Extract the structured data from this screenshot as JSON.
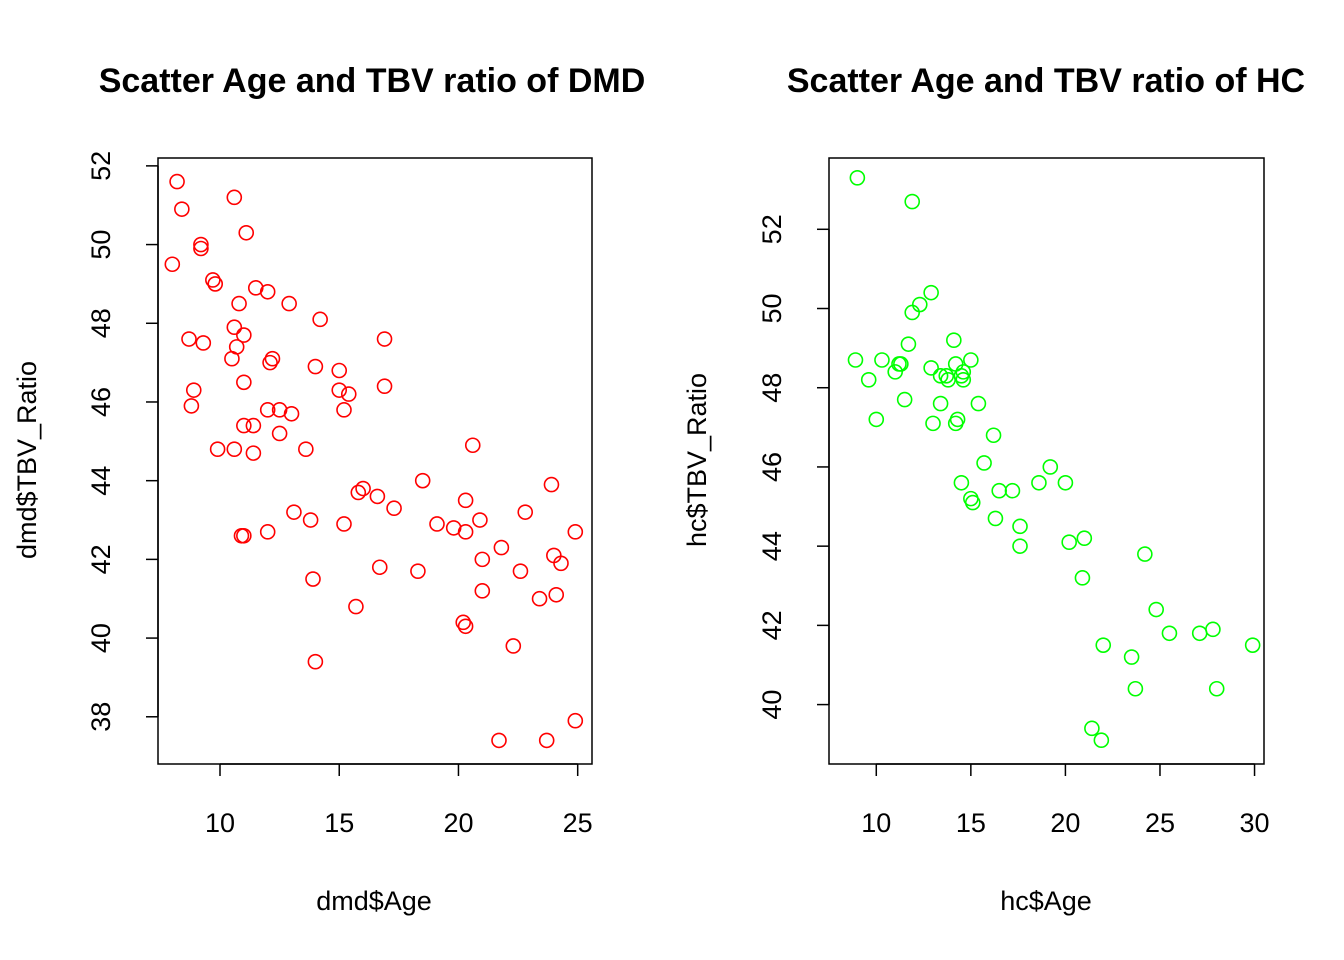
{
  "chart_data": [
    {
      "type": "scatter",
      "title": "Scatter Age and TBV ratio of DMD",
      "xlabel": "dmd$Age",
      "ylabel": "dmd$TBV_Ratio",
      "xlim": [
        7.4,
        25.6
      ],
      "ylim": [
        36.8,
        52.2
      ],
      "xticks": [
        10,
        15,
        20,
        25
      ],
      "yticks": [
        38,
        40,
        42,
        44,
        46,
        48,
        50,
        52
      ],
      "color": "#ff0000",
      "grid": false,
      "legend": "none",
      "x": [
        8.2,
        8.4,
        8.0,
        9.2,
        9.2,
        9.7,
        9.8,
        8.7,
        9.3,
        8.9,
        8.8,
        9.9,
        10.6,
        11.1,
        10.8,
        11.0,
        10.6,
        10.7,
        10.5,
        11.0,
        11.0,
        11.4,
        11.5,
        12.0,
        12.1,
        12.2,
        12.0,
        12.5,
        12.5,
        12.9,
        13.0,
        14.2,
        14.0,
        13.6,
        10.6,
        11.0,
        11.4,
        15.0,
        15.0,
        15.2,
        15.4,
        16.9,
        16.9,
        15.8,
        16.0,
        16.6,
        17.3,
        13.1,
        13.8,
        15.2,
        12.0,
        10.9,
        13.9,
        14.0,
        16.7,
        15.7,
        18.5,
        18.3,
        19.1,
        19.8,
        20.3,
        20.3,
        20.6,
        20.9,
        21.0,
        21.0,
        21.8,
        22.6,
        22.8,
        22.3,
        20.2,
        20.3,
        21.7,
        23.4,
        23.9,
        24.0,
        24.1,
        24.3,
        24.9,
        23.7,
        24.9
      ],
      "y": [
        51.6,
        50.9,
        49.5,
        50.0,
        49.9,
        49.1,
        49.0,
        47.6,
        47.5,
        46.3,
        45.9,
        44.8,
        51.2,
        50.3,
        48.5,
        47.7,
        47.9,
        47.4,
        47.1,
        46.5,
        45.4,
        45.4,
        48.9,
        48.8,
        47.0,
        47.1,
        45.8,
        45.8,
        45.2,
        48.5,
        45.7,
        48.1,
        46.9,
        44.8,
        44.8,
        42.6,
        44.7,
        46.8,
        46.3,
        45.8,
        46.2,
        47.6,
        46.4,
        43.7,
        43.8,
        43.6,
        43.3,
        43.2,
        43.0,
        42.9,
        42.7,
        42.6,
        41.5,
        39.4,
        41.8,
        40.8,
        44.0,
        41.7,
        42.9,
        42.8,
        43.5,
        42.7,
        44.9,
        43.0,
        42.0,
        41.2,
        42.3,
        41.7,
        43.2,
        39.8,
        40.4,
        40.3,
        37.4,
        41.0,
        43.9,
        42.1,
        41.1,
        41.9,
        42.7,
        37.4,
        37.9
      ]
    },
    {
      "type": "scatter",
      "title": "Scatter Age and TBV ratio of HC",
      "xlabel": "hc$Age",
      "ylabel": "hc$TBV_Ratio",
      "xlim": [
        7.5,
        30.5
      ],
      "ylim": [
        38.5,
        53.8
      ],
      "xticks": [
        10,
        15,
        20,
        25,
        30
      ],
      "yticks": [
        40,
        42,
        44,
        46,
        48,
        50,
        52
      ],
      "color": "#00ff00",
      "grid": false,
      "legend": "none",
      "x": [
        9.0,
        11.9,
        8.9,
        10.3,
        11.0,
        11.2,
        11.3,
        9.6,
        10.0,
        11.5,
        11.7,
        11.9,
        12.3,
        12.9,
        12.9,
        13.0,
        13.4,
        13.4,
        13.7,
        13.8,
        14.1,
        14.2,
        14.2,
        14.3,
        14.5,
        14.6,
        14.6,
        15.0,
        15.4,
        15.0,
        15.1,
        14.5,
        15.7,
        16.2,
        16.3,
        16.5,
        17.2,
        17.6,
        17.6,
        18.6,
        19.2,
        20.0,
        20.2,
        21.0,
        20.9,
        24.2,
        21.4,
        22.0,
        21.9,
        23.5,
        23.7,
        24.8,
        25.5,
        27.1,
        27.8,
        28.0,
        29.9
      ],
      "y": [
        53.3,
        52.7,
        48.7,
        48.7,
        48.4,
        48.6,
        48.6,
        48.2,
        47.2,
        47.7,
        49.1,
        49.9,
        50.1,
        50.4,
        48.5,
        47.1,
        48.3,
        47.6,
        48.3,
        48.2,
        49.2,
        48.6,
        47.1,
        47.2,
        48.3,
        48.4,
        48.2,
        48.7,
        47.6,
        45.2,
        45.1,
        45.6,
        46.1,
        46.8,
        44.7,
        45.4,
        45.4,
        44.5,
        44.0,
        45.6,
        46.0,
        45.6,
        44.1,
        44.2,
        43.2,
        43.8,
        39.4,
        41.5,
        39.1,
        41.2,
        40.4,
        42.4,
        41.8,
        41.8,
        41.9,
        40.4,
        41.5
      ]
    }
  ]
}
